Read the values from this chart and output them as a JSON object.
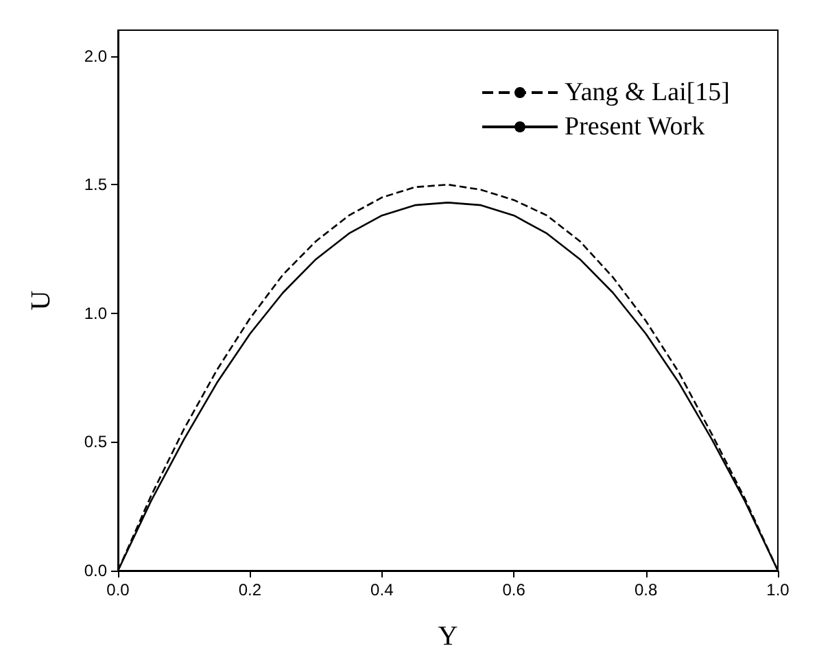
{
  "chart_data": {
    "type": "line",
    "xlabel": "Y",
    "ylabel": "U",
    "x": [
      0,
      0.05,
      0.1,
      0.15,
      0.2,
      0.25,
      0.3,
      0.35,
      0.4,
      0.45,
      0.5,
      0.55,
      0.6,
      0.65,
      0.7,
      0.75,
      0.8,
      0.85,
      0.9,
      0.95,
      1
    ],
    "series": [
      {
        "name": "Yang & Lai[15]",
        "color": "#000000",
        "line_style": "dashed",
        "values": [
          0,
          0.29,
          0.55,
          0.78,
          0.98,
          1.15,
          1.28,
          1.38,
          1.45,
          1.49,
          1.5,
          1.48,
          1.44,
          1.38,
          1.28,
          1.14,
          0.97,
          0.77,
          0.53,
          0.28,
          0
        ]
      },
      {
        "name": "Present Work",
        "color": "#000000",
        "line_style": "solid",
        "values": [
          0,
          0.27,
          0.51,
          0.73,
          0.92,
          1.08,
          1.21,
          1.31,
          1.38,
          1.42,
          1.43,
          1.42,
          1.38,
          1.31,
          1.21,
          1.08,
          0.92,
          0.73,
          0.51,
          0.27,
          0
        ]
      }
    ],
    "xlim": [
      0,
      1
    ],
    "xticks": [
      {
        "value": 0,
        "label": "0.0"
      },
      0.2,
      0.4,
      0.6,
      0.8,
      {
        "value": 1,
        "label": "1.0"
      }
    ],
    "ylim": [
      0,
      2.1
    ],
    "yticks": [
      {
        "value": 0,
        "label": "0.0"
      },
      0.5,
      {
        "value": 1,
        "label": "1.0"
      },
      1.5,
      {
        "value": 2,
        "label": "2.0"
      }
    ],
    "grid": false,
    "legend": "top right",
    "marker": "none"
  }
}
